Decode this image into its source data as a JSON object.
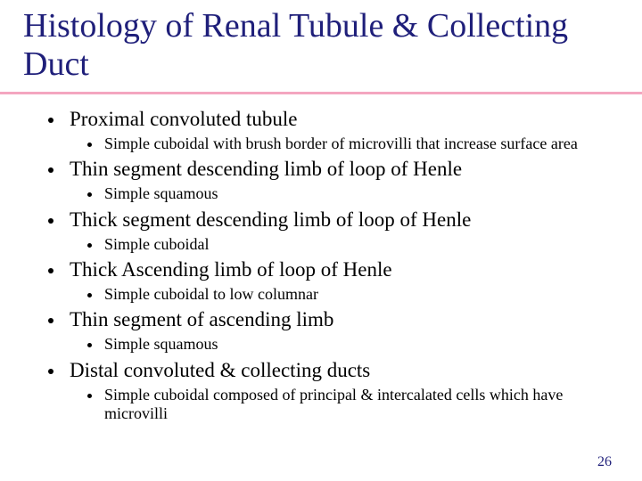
{
  "title": "Histology of Renal Tubule & Collecting Duct",
  "items": [
    {
      "main": "Proximal convoluted tubule",
      "sub": "Simple cuboidal with brush border of microvilli that increase surface area"
    },
    {
      "main": "Thin segment descending limb of loop of Henle",
      "sub": "Simple squamous"
    },
    {
      "main": "Thick segment descending limb of loop of Henle",
      "sub": "Simple cuboidal"
    },
    {
      "main": "Thick Ascending limb of loop of Henle",
      "sub": "Simple cuboidal to low columnar"
    },
    {
      "main": "Thin segment of ascending limb",
      "sub": "Simple squamous"
    },
    {
      "main": "Distal convoluted & collecting ducts",
      "sub": "Simple cuboidal composed of principal & intercalated cells which have microvilli"
    }
  ],
  "page_number": "26",
  "colors": {
    "title": "#1f1f7a",
    "underline": "#f4a6c0",
    "text": "#000000",
    "background": "#ffffff"
  },
  "fonts": {
    "title_size": 38,
    "main_size": 23,
    "sub_size": 18,
    "page_size": 16
  }
}
